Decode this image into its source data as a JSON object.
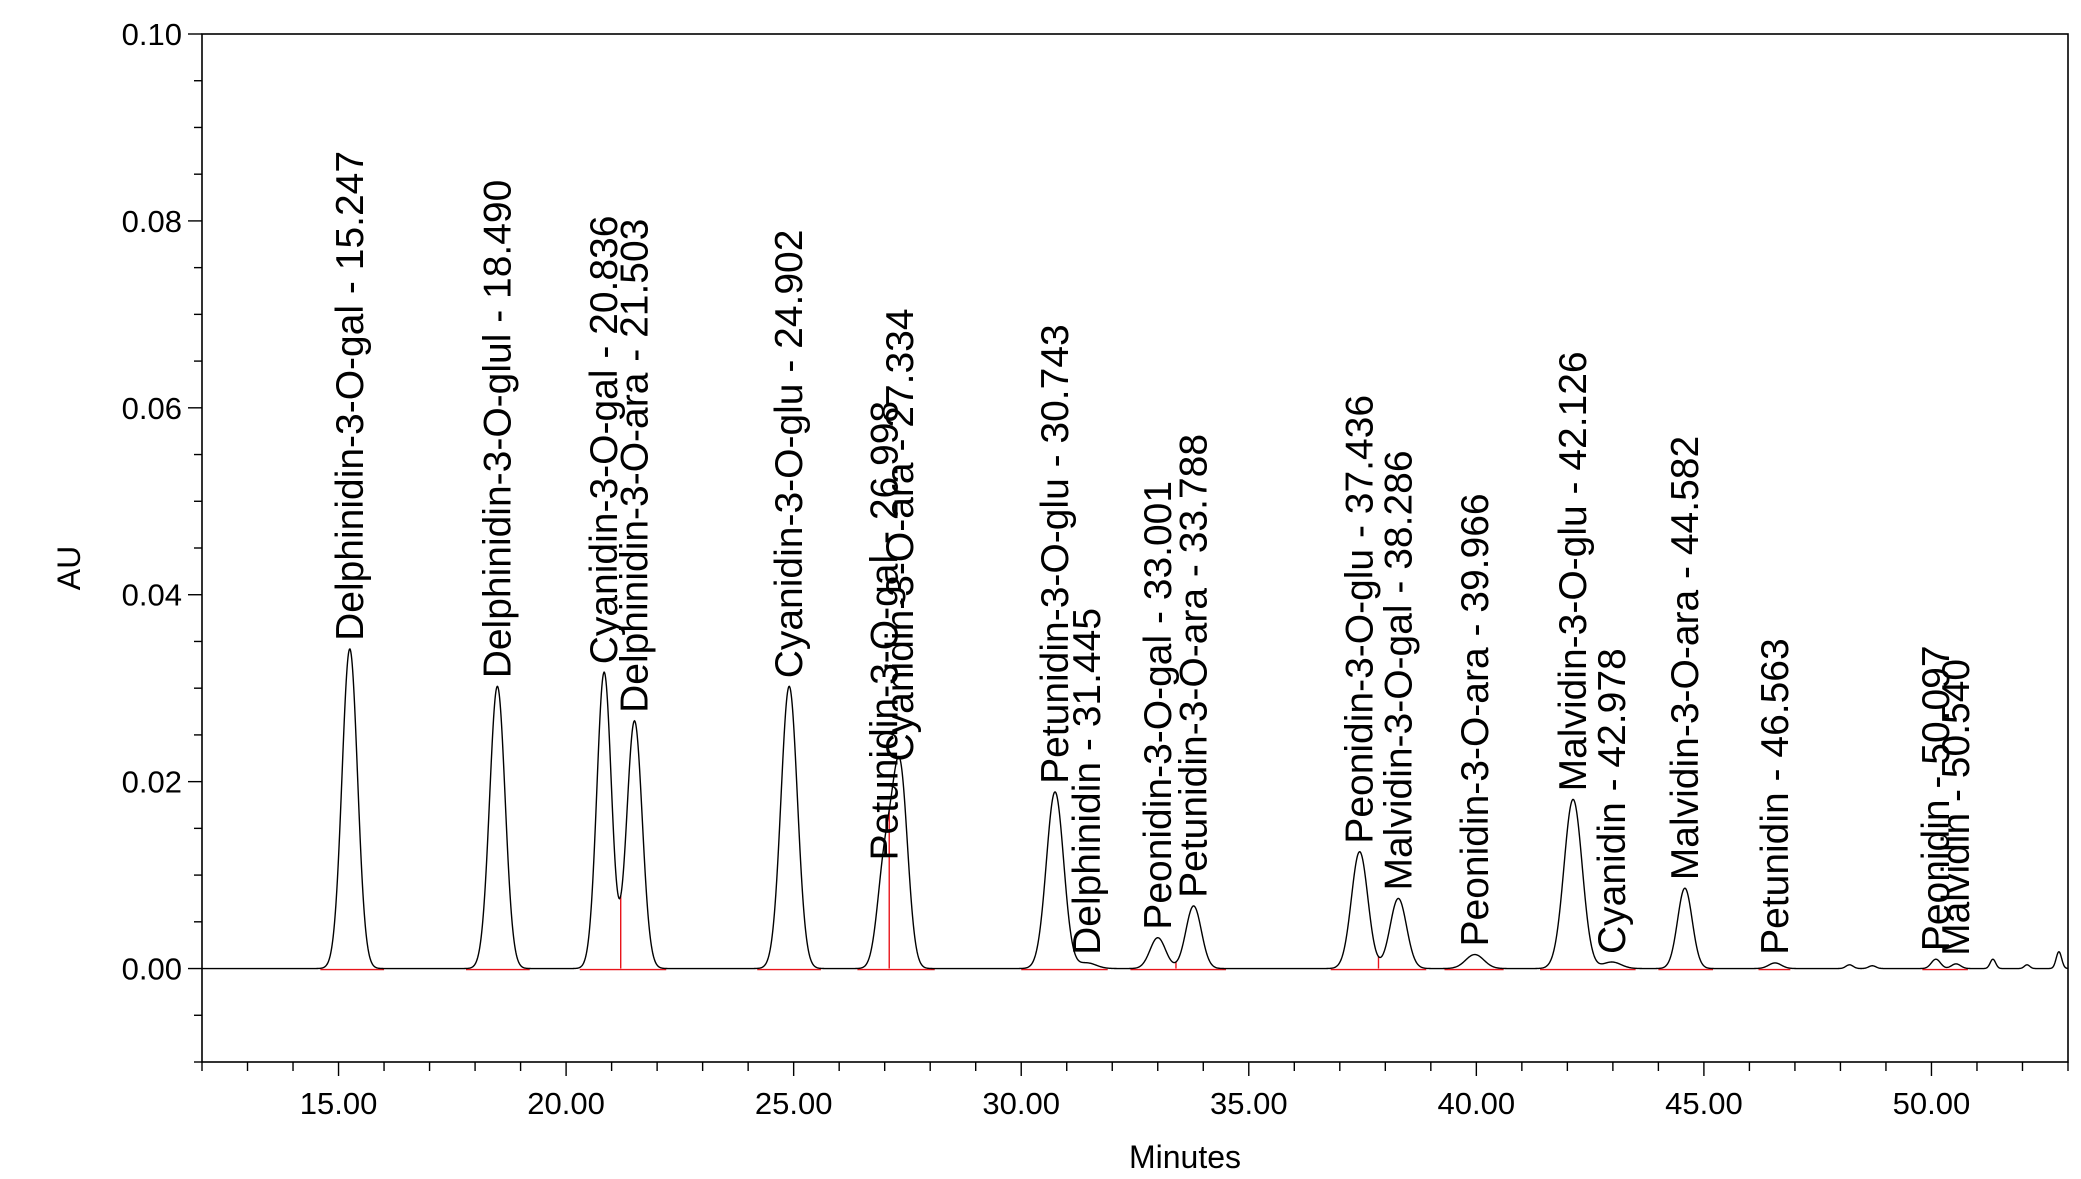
{
  "chart_data": {
    "type": "line",
    "title": "",
    "xlabel": "Minutes",
    "ylabel": "AU",
    "xlim": [
      12.0,
      53.0
    ],
    "ylim": [
      -0.01,
      0.1
    ],
    "x_ticks": [
      "15.00",
      "20.00",
      "25.00",
      "30.00",
      "35.00",
      "40.00",
      "45.00",
      "50.00"
    ],
    "x_tick_values": [
      15,
      20,
      25,
      30,
      35,
      40,
      45,
      50
    ],
    "y_ticks": [
      "0.00",
      "0.02",
      "0.04",
      "0.06",
      "0.08",
      "0.10"
    ],
    "y_tick_values": [
      0,
      0.02,
      0.04,
      0.06,
      0.08,
      0.1
    ],
    "grid": false,
    "legend": "none",
    "colors": {
      "trace": "#000000",
      "baseline": "#e8141b",
      "axis": "#000000"
    },
    "peaks": [
      {
        "label": "Delphinidin-3-O-gal - 15.247",
        "rt": 15.247,
        "height": 0.0342,
        "width": 0.17
      },
      {
        "label": "Delphinidin-3-O-glul - 18.490",
        "rt": 18.49,
        "height": 0.0302,
        "width": 0.17
      },
      {
        "label": "Cyanidin-3-O-gal - 20.836",
        "rt": 20.836,
        "height": 0.0317,
        "width": 0.16
      },
      {
        "label": "Delphinidin-3-O-ara - 21.503",
        "rt": 21.503,
        "height": 0.0265,
        "width": 0.17
      },
      {
        "label": "Cyanidin-3-O-glu - 24.902",
        "rt": 24.902,
        "height": 0.0302,
        "width": 0.18
      },
      {
        "label": "Petunidin-3-O-gal - 26.998",
        "rt": 26.998,
        "height": 0.0107,
        "width": 0.16
      },
      {
        "label": "Cyanidin-3-O-ara - 27.334",
        "rt": 27.334,
        "height": 0.0213,
        "width": 0.17
      },
      {
        "label": "Petunidin-3-O-glu - 30.743",
        "rt": 30.743,
        "height": 0.0189,
        "width": 0.19
      },
      {
        "label": "Delphinidin - 31.445",
        "rt": 31.445,
        "height": 0.0006,
        "width": 0.2
      },
      {
        "label": "Peonidin-3-O-gal - 33.001",
        "rt": 33.001,
        "height": 0.0033,
        "width": 0.17
      },
      {
        "label": "Petunidin-3-O-ara - 33.788",
        "rt": 33.788,
        "height": 0.0067,
        "width": 0.17
      },
      {
        "label": "Peonidin-3-O-glu - 37.436",
        "rt": 37.436,
        "height": 0.0125,
        "width": 0.18
      },
      {
        "label": "Malvidin-3-O-gal - 38.286",
        "rt": 38.286,
        "height": 0.0075,
        "width": 0.18
      },
      {
        "label": "Peonidin-3-O-ara - 39.966",
        "rt": 39.966,
        "height": 0.0015,
        "width": 0.2
      },
      {
        "label": "Malvidin-3-O-glu - 42.126",
        "rt": 42.126,
        "height": 0.0181,
        "width": 0.2
      },
      {
        "label": "Cyanidin - 42.978",
        "rt": 42.978,
        "height": 0.0007,
        "width": 0.2
      },
      {
        "label": "Malvidin-3-O-ara - 44.582",
        "rt": 44.582,
        "height": 0.0086,
        "width": 0.16
      },
      {
        "label": "Petunidin - 46.563",
        "rt": 46.563,
        "height": 0.0006,
        "width": 0.14
      },
      {
        "label": "Peonidin - 50.097",
        "rt": 50.097,
        "height": 0.001,
        "width": 0.1
      },
      {
        "label": "Malvidin - 50.540",
        "rt": 50.54,
        "height": 0.0005,
        "width": 0.1
      }
    ],
    "minor_peaks": [
      {
        "rt": 48.2,
        "height": 0.0004,
        "width": 0.08
      },
      {
        "rt": 48.7,
        "height": 0.0003,
        "width": 0.08
      },
      {
        "rt": 51.35,
        "height": 0.001,
        "width": 0.06
      },
      {
        "rt": 52.1,
        "height": 0.0004,
        "width": 0.06
      },
      {
        "rt": 52.8,
        "height": 0.0018,
        "width": 0.06
      }
    ],
    "baseline_segments": [
      [
        14.6,
        16.0
      ],
      [
        17.8,
        19.2
      ],
      [
        20.3,
        22.2
      ],
      [
        24.2,
        25.6
      ],
      [
        26.4,
        28.1
      ],
      [
        30.0,
        31.9
      ],
      [
        32.4,
        34.5
      ],
      [
        36.8,
        38.9
      ],
      [
        39.3,
        40.6
      ],
      [
        41.4,
        43.5
      ],
      [
        44.0,
        45.2
      ],
      [
        46.2,
        46.9
      ],
      [
        49.8,
        50.8
      ]
    ],
    "drop_lines": [
      21.2,
      27.1,
      33.4,
      37.85
    ]
  }
}
